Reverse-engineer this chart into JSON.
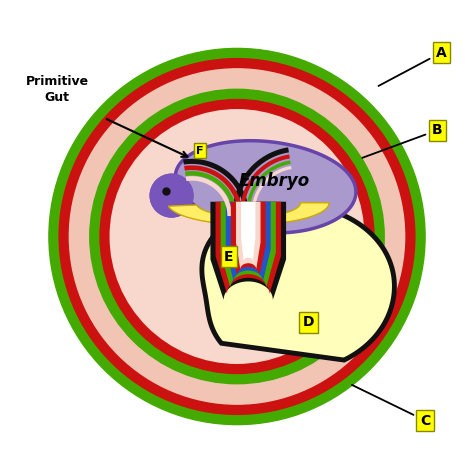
{
  "bg_color": "#ffffff",
  "green_outer": "#44aa00",
  "red_ring": "#cc1111",
  "pink_fill": "#f2c4b4",
  "green_inner": "#44aa00",
  "embryo_purple": "#aa99cc",
  "embryo_edge": "#6644aa",
  "embryo_head": "#7755bb",
  "yolk_yellow": "#ffffbb",
  "yolk_dark_yellow": "#ffee88",
  "notochord_yellow": "#ffee66",
  "label_bg": "#ffff00",
  "label_edge": "#999900",
  "col_black": "#111111",
  "col_red": "#cc1111",
  "col_green": "#44aa00",
  "col_blue": "#2255cc",
  "col_white": "#ffffff",
  "label_A": "A",
  "label_B": "B",
  "label_C": "C",
  "label_D": "D",
  "label_E": "E",
  "label_F": "F",
  "text_embryo": "Embryo",
  "text_primitive_gut": "Primitive\nGut"
}
